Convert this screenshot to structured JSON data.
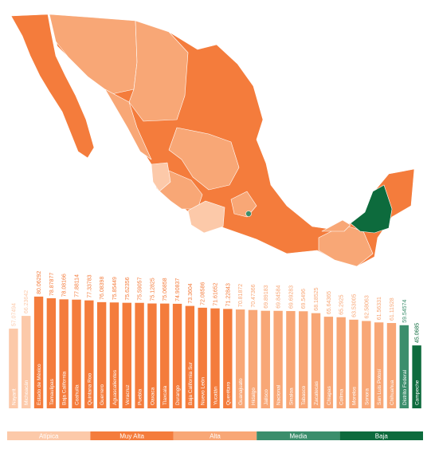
{
  "chart_data": {
    "type": "bar",
    "categories": [
      "Nayarit",
      "Michoacán",
      "Estado de México",
      "Tamaulipas",
      "Baja California",
      "Coahuila",
      "Quintana Roo",
      "Guerrero",
      "Aguascalientes",
      "Veracruz",
      "Puebla",
      "Oaxaca",
      "Tlaxcala",
      "Durango",
      "Baja California Sur",
      "Nuevo León",
      "Yucatán",
      "Querétaro",
      "Guanajuato",
      "Hidalgo",
      "Jalisco",
      "Nacional",
      "Sinaloa",
      "Tabasco",
      "Zacatecas",
      "Chiapas",
      "Colima",
      "Morelos",
      "Sonora",
      "San Luis Potosí",
      "Chihuahua",
      "Distrito Federal",
      "Campeche"
    ],
    "values": [
      57.07494,
      66.23642,
      80.06292,
      78.87877,
      78.08166,
      77.88114,
      77.33783,
      76.08398,
      75.85449,
      75.62356,
      75.59057,
      75.12825,
      75.06858,
      74.90837,
      73.3604,
      72.08586,
      71.61652,
      71.22843,
      70.81872,
      70.47366,
      69.89183,
      69.84584,
      69.69283,
      69.5496,
      68.18525,
      65.64365,
      65.2925,
      63.53005,
      62.58063,
      61.56331,
      61.11928,
      59.54574,
      45.0685
    ],
    "colors": [
      "#fcc9a9",
      "#fcc9a9",
      "#f47c3c",
      "#f47c3c",
      "#f47c3c",
      "#f47c3c",
      "#f47c3c",
      "#f47c3c",
      "#f47c3c",
      "#f47c3c",
      "#f47c3c",
      "#f47c3c",
      "#f47c3c",
      "#f47c3c",
      "#f47c3c",
      "#f47c3c",
      "#f47c3c",
      "#f47c3c",
      "#f8a776",
      "#f8a776",
      "#f8a776",
      "#f8a776",
      "#f8a776",
      "#f8a776",
      "#f8a776",
      "#f8a776",
      "#f8a776",
      "#f8a776",
      "#f8a776",
      "#f8a776",
      "#f8a776",
      "#3b8e6c",
      "#0d6b3d"
    ],
    "legend": [
      {
        "name": "Atípica",
        "color": "#fcc9a9"
      },
      {
        "name": "Muy Alta",
        "color": "#f47c3c"
      },
      {
        "name": "Alta",
        "color": "#f8a776"
      },
      {
        "name": "Media",
        "color": "#3b8e6c"
      },
      {
        "name": "Baja",
        "color": "#0d6b3d"
      }
    ]
  }
}
